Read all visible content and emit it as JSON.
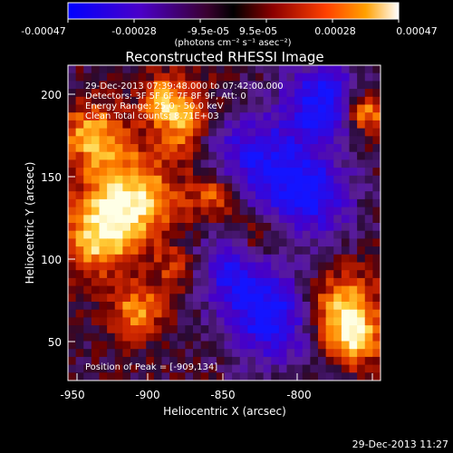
{
  "colorbar": {
    "ticks": [
      "-0.00047",
      "-0.00028",
      "-9.5e-05",
      "9.5e-05",
      "0.00028",
      "0.00047"
    ],
    "unit_label": "(photons cm⁻² s⁻¹ asec⁻²)"
  },
  "plot": {
    "title": "Reconstructed RHESSI Image",
    "xlabel": "Heliocentric X (arcsec)",
    "ylabel": "Heliocentric Y (arcsec)",
    "xticks": [
      "-950",
      "-900",
      "-850",
      "-800"
    ],
    "yticks": [
      "200",
      "150",
      "100",
      "50"
    ],
    "info_lines": [
      "29-Dec-2013 07:39:48.000 to 07:42:00.000",
      "Detectors: 3F 5F 6F 7F 8F 9F, Att: 0",
      "Energy Range: 25.0 - 50.0 keV",
      "Clean    Total counts: 8.71E+03"
    ],
    "peak_label": "Position of Peak = [-909,134]"
  },
  "timestamp": "29-Dec-2013 11:27"
}
